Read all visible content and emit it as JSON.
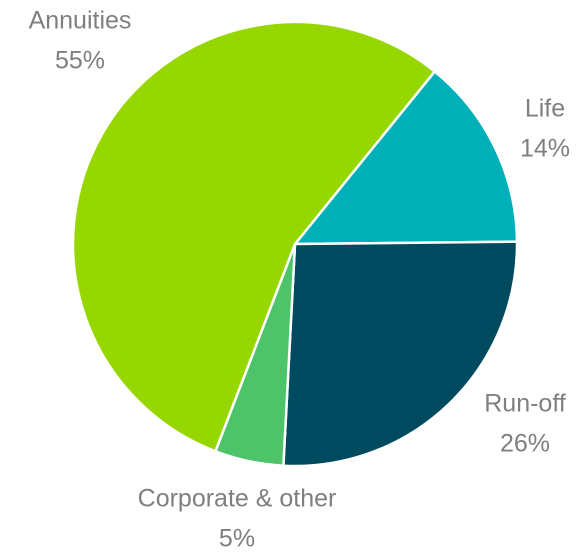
{
  "chart_data": {
    "type": "pie",
    "categories": [
      "Life",
      "Run-off",
      "Corporate & other",
      "Annuities"
    ],
    "values": [
      14,
      26,
      5,
      55
    ],
    "value_labels": [
      "14%",
      "26%",
      "5%",
      "55%"
    ],
    "colors": [
      "#00b0b9",
      "#004a5f",
      "#4dc36a",
      "#97d700"
    ]
  }
}
